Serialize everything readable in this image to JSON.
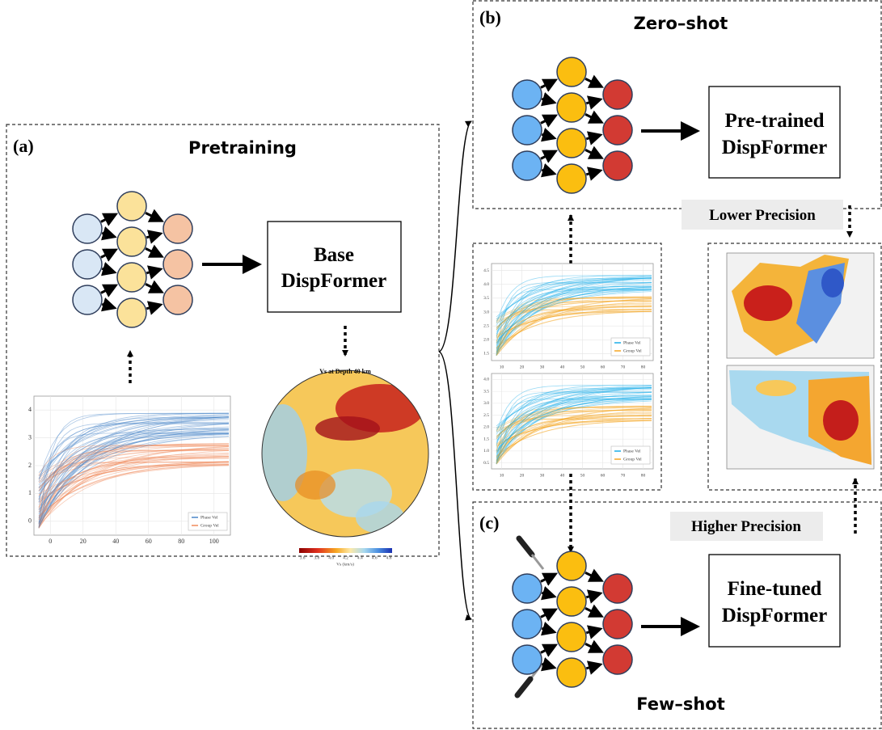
{
  "panels": {
    "a": {
      "label": "(a)",
      "title": "Pretraining",
      "model": [
        "Base",
        "DispFormer"
      ],
      "plot": {
        "yticks": [
          "0",
          "1",
          "2",
          "3",
          "4"
        ],
        "xticks": [
          "0",
          "20",
          "40",
          "60",
          "80",
          "100"
        ],
        "legend": [
          "Phase Vel",
          "Group Vel"
        ]
      },
      "map": {
        "title": "Vs at Depth 40 km",
        "colorbar_ticks": [
          "3.6",
          "3.8",
          "4.0",
          "4.2",
          "4.4",
          "4.6",
          "4.8"
        ],
        "colorbar_label": "Vs (km/s)"
      }
    },
    "b": {
      "label": "(b)",
      "title": "Zero–shot",
      "model": [
        "Pre-trained",
        "DispFormer"
      ]
    },
    "c": {
      "label": "(c)",
      "title": "Few–shot",
      "model": [
        "Fine-tuned",
        "DispFormer"
      ]
    }
  },
  "dispersion_plots": [
    {
      "yticks": [
        "1.5",
        "2.0",
        "2.5",
        "3.0",
        "3.5",
        "4.0",
        "4.5"
      ],
      "xticks": [
        "10",
        "20",
        "30",
        "40",
        "50",
        "60",
        "70",
        "80"
      ],
      "legend": [
        "Phase Vel",
        "Group Vel"
      ]
    },
    {
      "yticks": [
        "0.5",
        "1.0",
        "1.5",
        "2.0",
        "2.5",
        "3.0",
        "3.5",
        "4.0"
      ],
      "xticks": [
        "10",
        "20",
        "30",
        "40",
        "50",
        "60",
        "70",
        "80"
      ],
      "legend": [
        "Phase Vel",
        "Group Vel"
      ]
    }
  ],
  "precision": {
    "lower": "Lower Precision",
    "higher": "Higher Precision"
  }
}
